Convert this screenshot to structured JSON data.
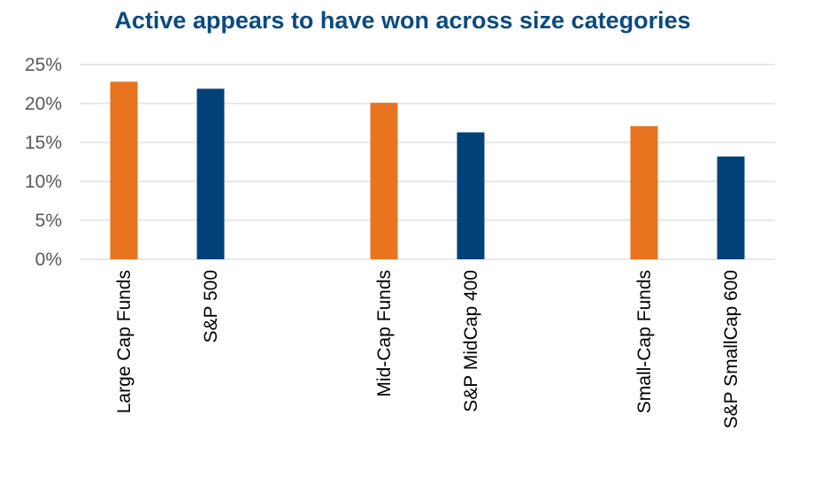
{
  "chart_data": {
    "type": "bar",
    "title": "Active appears to have won across size categories",
    "xlabel": "",
    "ylabel": "",
    "ylim": [
      0,
      25
    ],
    "yticks": [
      "0%",
      "5%",
      "10%",
      "15%",
      "20%",
      "25%"
    ],
    "grid": true,
    "legend": "none",
    "categories": [
      "Large Cap Funds",
      "S&P 500",
      "Mid-Cap Funds",
      "S&P MidCap 400",
      "Small-Cap Funds",
      "S&P SmallCap 600"
    ],
    "values": [
      22.8,
      21.9,
      20.1,
      16.3,
      17.1,
      13.2
    ],
    "colors": [
      "#e8741f",
      "#00417a",
      "#e8741f",
      "#00417a",
      "#e8741f",
      "#00417a"
    ],
    "gridline_color": "#d9d9d9"
  }
}
